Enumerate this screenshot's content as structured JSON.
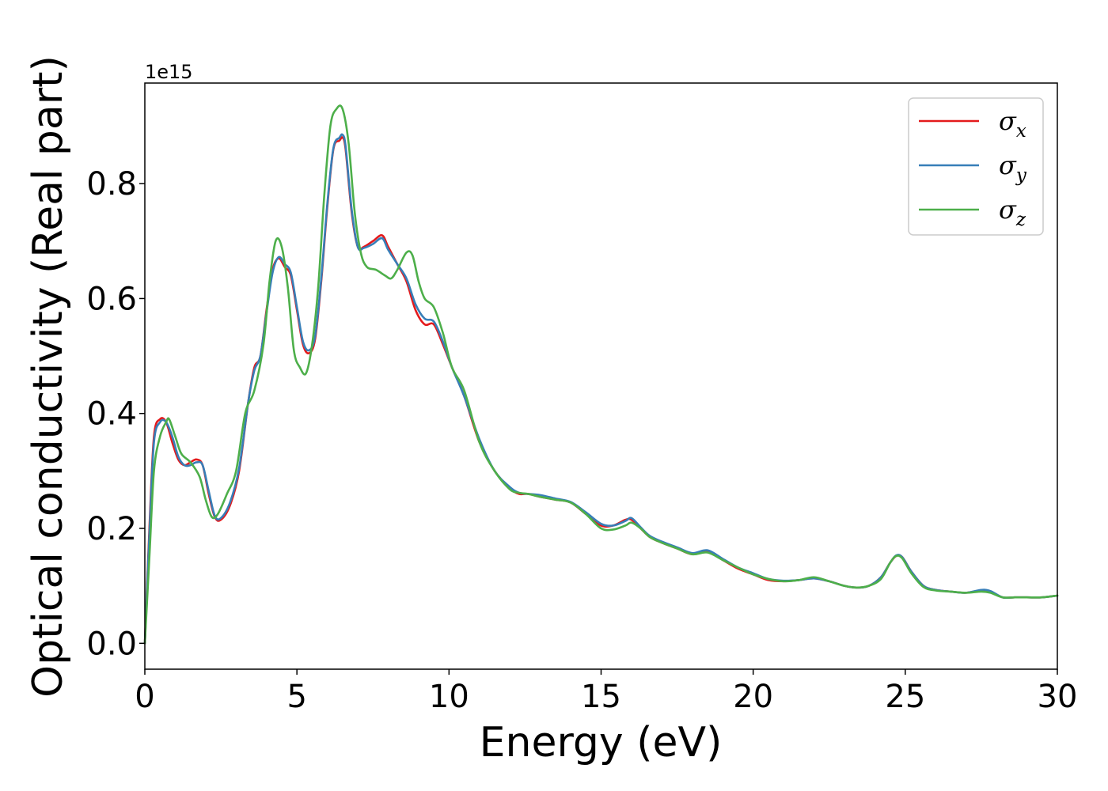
{
  "chart_data": {
    "type": "line",
    "xlabel": "Energy (eV)",
    "ylabel": "Optical conductivity (Real part)",
    "y_offset_label": "1e15",
    "xlim": [
      0,
      30
    ],
    "ylim": [
      -0.045,
      0.975
    ],
    "x_ticks": [
      0,
      5,
      10,
      15,
      20,
      25,
      30
    ],
    "x_tick_labels": [
      "0",
      "5",
      "10",
      "15",
      "20",
      "25",
      "30"
    ],
    "y_ticks": [
      0.0,
      0.2,
      0.4,
      0.6,
      0.8
    ],
    "y_tick_labels": [
      "0.0",
      "0.2",
      "0.4",
      "0.6",
      "0.8"
    ],
    "grid": false,
    "legend_position": "top-right",
    "series": [
      {
        "name": "σx",
        "legend_base": "σ",
        "legend_sub": "x",
        "color": "#e41a1c",
        "x": [
          0,
          0.15,
          0.3,
          0.5,
          0.7,
          0.9,
          1.1,
          1.3,
          1.5,
          1.7,
          1.9,
          2.1,
          2.3,
          2.5,
          2.8,
          3.1,
          3.4,
          3.6,
          3.8,
          4.0,
          4.2,
          4.4,
          4.6,
          4.8,
          5.0,
          5.2,
          5.4,
          5.6,
          5.8,
          6.0,
          6.2,
          6.4,
          6.5,
          6.6,
          6.8,
          7.0,
          7.2,
          7.5,
          7.8,
          8.0,
          8.3,
          8.6,
          8.9,
          9.2,
          9.5,
          9.8,
          10.1,
          10.5,
          11.0,
          11.5,
          12.0,
          12.3,
          12.6,
          13.0,
          13.5,
          14.0,
          14.5,
          15.0,
          15.4,
          15.8,
          16.0,
          16.3,
          16.6,
          17.0,
          17.5,
          18.0,
          18.5,
          19.0,
          19.5,
          20.0,
          20.5,
          21.0,
          21.5,
          22.0,
          22.5,
          23.0,
          23.4,
          23.8,
          24.2,
          24.5,
          24.7,
          24.9,
          25.2,
          25.6,
          26.0,
          26.5,
          27.0,
          27.5,
          27.8,
          28.2,
          28.6,
          29.0,
          29.5,
          30.0
        ],
        "y": [
          0.0,
          0.2,
          0.36,
          0.39,
          0.385,
          0.35,
          0.32,
          0.31,
          0.315,
          0.32,
          0.31,
          0.26,
          0.22,
          0.215,
          0.24,
          0.3,
          0.42,
          0.48,
          0.5,
          0.58,
          0.65,
          0.67,
          0.655,
          0.64,
          0.58,
          0.52,
          0.505,
          0.53,
          0.63,
          0.76,
          0.86,
          0.875,
          0.88,
          0.86,
          0.75,
          0.69,
          0.69,
          0.7,
          0.71,
          0.69,
          0.66,
          0.63,
          0.58,
          0.555,
          0.555,
          0.52,
          0.48,
          0.43,
          0.35,
          0.3,
          0.27,
          0.26,
          0.26,
          0.255,
          0.25,
          0.245,
          0.225,
          0.205,
          0.205,
          0.215,
          0.215,
          0.2,
          0.185,
          0.175,
          0.165,
          0.155,
          0.16,
          0.145,
          0.13,
          0.12,
          0.11,
          0.108,
          0.11,
          0.113,
          0.108,
          0.1,
          0.097,
          0.1,
          0.115,
          0.14,
          0.152,
          0.15,
          0.125,
          0.1,
          0.093,
          0.09,
          0.088,
          0.092,
          0.09,
          0.08,
          0.08,
          0.08,
          0.08,
          0.083
        ]
      },
      {
        "name": "σy",
        "legend_base": "σ",
        "legend_sub": "y",
        "color": "#377eb8",
        "x": [
          0,
          0.15,
          0.3,
          0.5,
          0.7,
          0.9,
          1.1,
          1.3,
          1.5,
          1.7,
          1.9,
          2.1,
          2.3,
          2.5,
          2.8,
          3.1,
          3.4,
          3.6,
          3.8,
          4.0,
          4.2,
          4.4,
          4.6,
          4.8,
          5.0,
          5.2,
          5.4,
          5.6,
          5.8,
          6.0,
          6.2,
          6.4,
          6.5,
          6.6,
          6.8,
          7.0,
          7.2,
          7.5,
          7.8,
          8.0,
          8.3,
          8.6,
          8.9,
          9.2,
          9.5,
          9.8,
          10.1,
          10.5,
          11.0,
          11.5,
          12.0,
          12.3,
          12.6,
          13.0,
          13.5,
          14.0,
          14.5,
          15.0,
          15.4,
          15.8,
          16.0,
          16.3,
          16.6,
          17.0,
          17.5,
          18.0,
          18.5,
          19.0,
          19.5,
          20.0,
          20.5,
          21.0,
          21.5,
          22.0,
          22.5,
          23.0,
          23.4,
          23.8,
          24.2,
          24.5,
          24.7,
          24.9,
          25.2,
          25.6,
          26.0,
          26.5,
          27.0,
          27.5,
          27.8,
          28.2,
          28.6,
          29.0,
          29.5,
          30.0
        ],
        "y": [
          0.0,
          0.19,
          0.35,
          0.385,
          0.385,
          0.36,
          0.325,
          0.31,
          0.31,
          0.315,
          0.31,
          0.265,
          0.222,
          0.218,
          0.245,
          0.305,
          0.42,
          0.475,
          0.5,
          0.575,
          0.645,
          0.672,
          0.66,
          0.645,
          0.585,
          0.525,
          0.51,
          0.535,
          0.635,
          0.765,
          0.862,
          0.88,
          0.885,
          0.865,
          0.755,
          0.69,
          0.688,
          0.695,
          0.705,
          0.685,
          0.66,
          0.635,
          0.59,
          0.565,
          0.56,
          0.525,
          0.48,
          0.43,
          0.355,
          0.3,
          0.272,
          0.262,
          0.26,
          0.258,
          0.252,
          0.246,
          0.228,
          0.208,
          0.205,
          0.213,
          0.218,
          0.202,
          0.187,
          0.177,
          0.167,
          0.157,
          0.162,
          0.147,
          0.132,
          0.122,
          0.112,
          0.109,
          0.11,
          0.113,
          0.108,
          0.1,
          0.097,
          0.1,
          0.115,
          0.14,
          0.153,
          0.15,
          0.125,
          0.1,
          0.093,
          0.09,
          0.088,
          0.093,
          0.091,
          0.08,
          0.08,
          0.08,
          0.08,
          0.083
        ]
      },
      {
        "name": "σz",
        "legend_base": "σ",
        "legend_sub": "z",
        "color": "#4daf4a",
        "x": [
          0,
          0.15,
          0.3,
          0.5,
          0.7,
          0.8,
          1.0,
          1.2,
          1.5,
          1.8,
          2.0,
          2.2,
          2.4,
          2.7,
          3.0,
          3.3,
          3.6,
          3.9,
          4.1,
          4.3,
          4.5,
          4.7,
          4.9,
          5.1,
          5.3,
          5.5,
          5.7,
          5.9,
          6.1,
          6.3,
          6.5,
          6.7,
          6.9,
          7.1,
          7.3,
          7.6,
          7.9,
          8.1,
          8.3,
          8.6,
          8.8,
          9.0,
          9.2,
          9.5,
          9.8,
          10.1,
          10.5,
          11.0,
          11.5,
          12.0,
          12.3,
          12.6,
          13.0,
          13.5,
          14.0,
          14.5,
          15.0,
          15.4,
          15.8,
          16.0,
          16.3,
          16.6,
          17.0,
          17.5,
          18.0,
          18.5,
          19.0,
          19.5,
          20.0,
          20.5,
          21.0,
          21.5,
          22.0,
          22.5,
          23.0,
          23.4,
          23.8,
          24.2,
          24.5,
          24.7,
          24.9,
          25.2,
          25.6,
          26.0,
          26.5,
          27.0,
          27.5,
          27.8,
          28.2,
          28.6,
          29.0,
          29.5,
          30.0
        ],
        "y": [
          0.0,
          0.15,
          0.3,
          0.36,
          0.385,
          0.39,
          0.36,
          0.33,
          0.315,
          0.29,
          0.25,
          0.22,
          0.225,
          0.26,
          0.3,
          0.4,
          0.44,
          0.52,
          0.63,
          0.7,
          0.69,
          0.62,
          0.51,
          0.48,
          0.47,
          0.52,
          0.62,
          0.78,
          0.9,
          0.93,
          0.93,
          0.87,
          0.75,
          0.68,
          0.655,
          0.65,
          0.64,
          0.635,
          0.65,
          0.68,
          0.675,
          0.63,
          0.6,
          0.585,
          0.54,
          0.48,
          0.44,
          0.35,
          0.3,
          0.268,
          0.262,
          0.26,
          0.255,
          0.25,
          0.245,
          0.225,
          0.2,
          0.198,
          0.205,
          0.21,
          0.2,
          0.185,
          0.175,
          0.165,
          0.155,
          0.158,
          0.145,
          0.132,
          0.12,
          0.112,
          0.108,
          0.11,
          0.115,
          0.108,
          0.1,
          0.097,
          0.1,
          0.112,
          0.14,
          0.152,
          0.148,
          0.122,
          0.098,
          0.092,
          0.09,
          0.088,
          0.09,
          0.088,
          0.08,
          0.08,
          0.08,
          0.08,
          0.083
        ]
      }
    ]
  }
}
